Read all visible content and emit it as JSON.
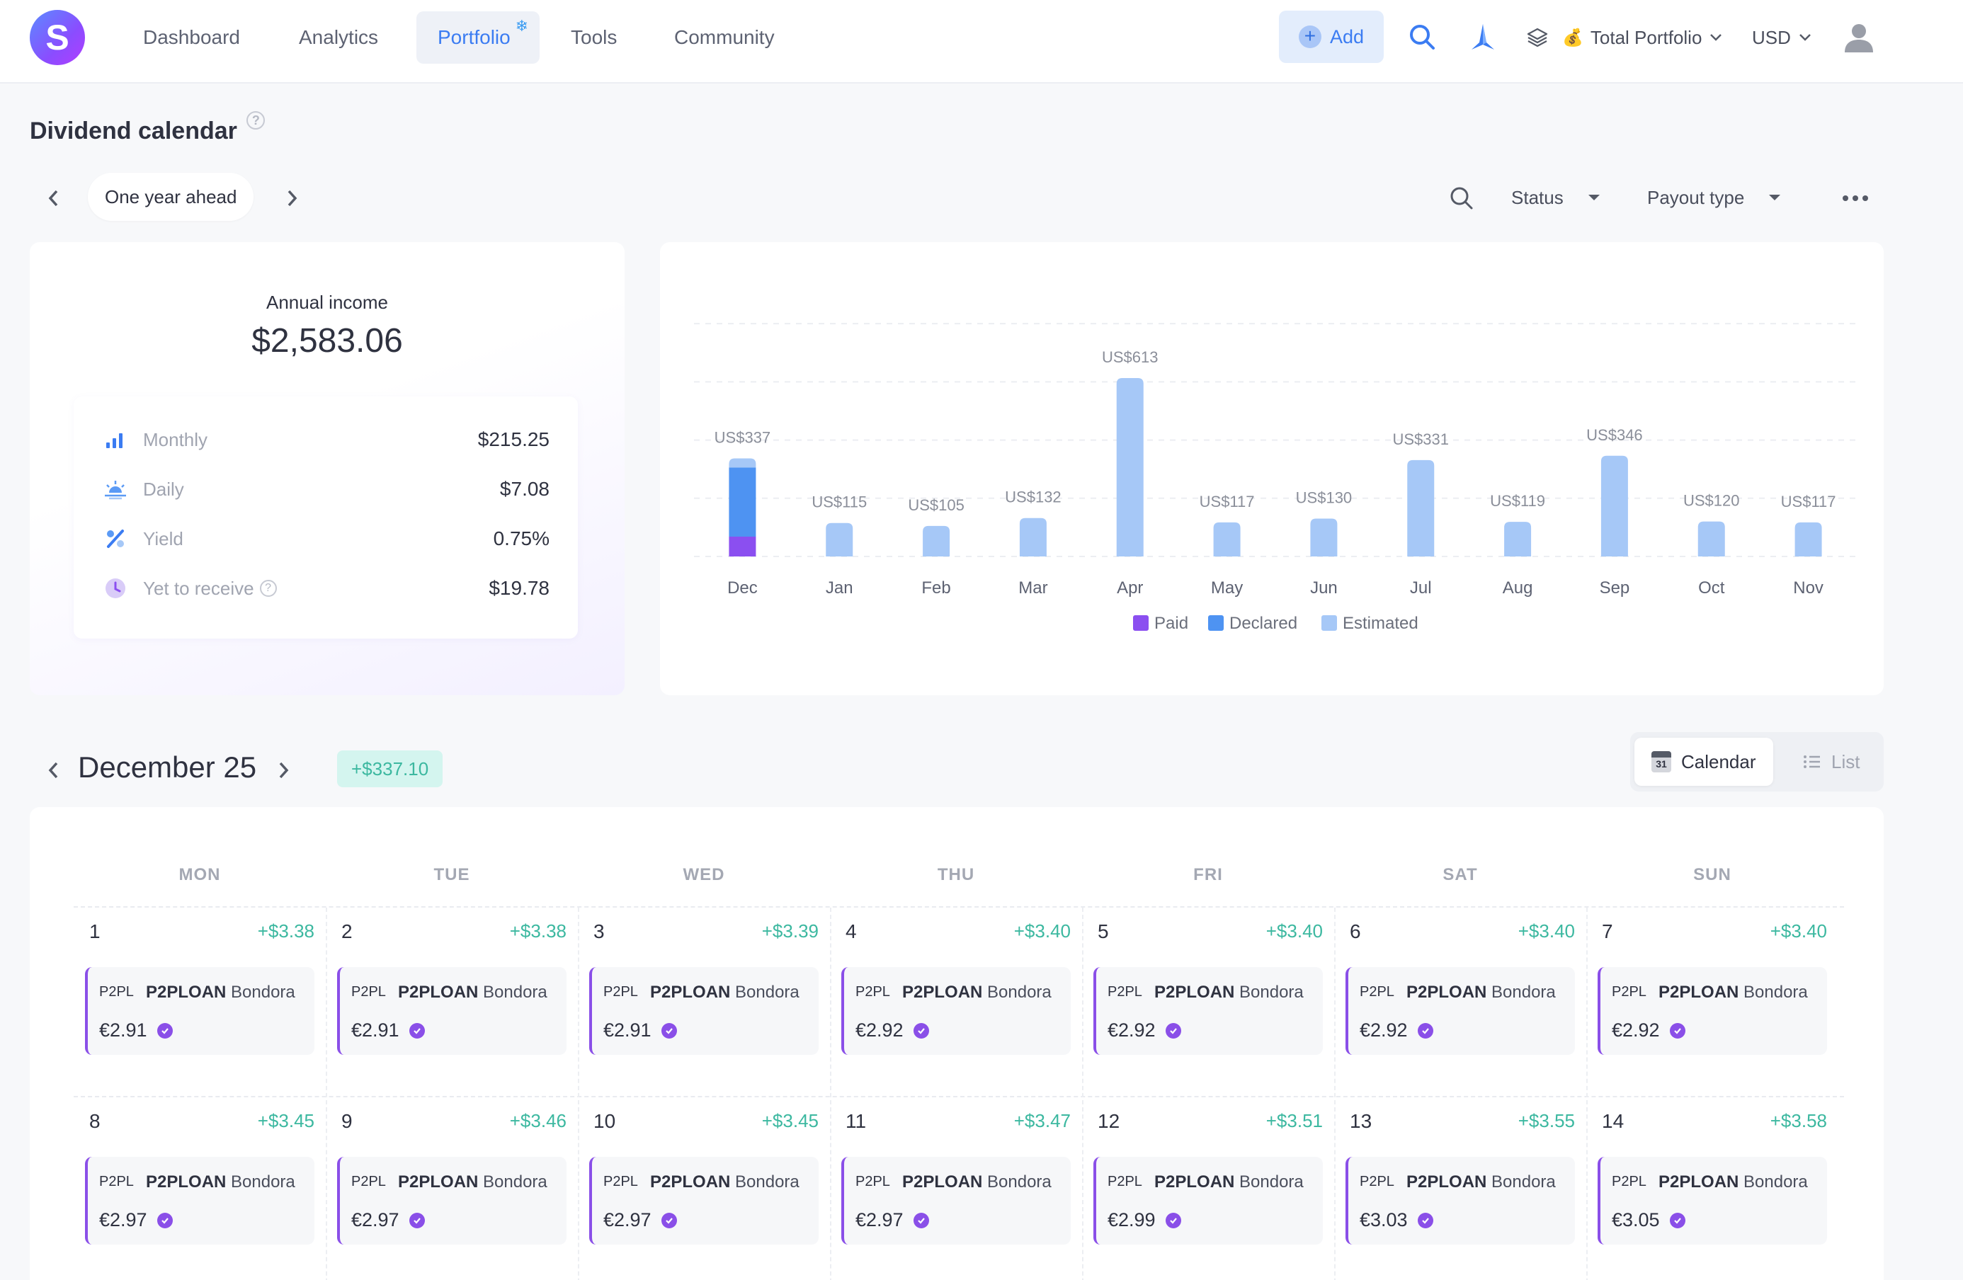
{
  "app": {
    "logo_letter": "S"
  },
  "nav": {
    "items": [
      {
        "label": "Dashboard",
        "active": false
      },
      {
        "label": "Analytics",
        "active": false
      },
      {
        "label": "Portfolio",
        "active": true
      },
      {
        "label": "Tools",
        "active": false
      },
      {
        "label": "Community",
        "active": false
      }
    ],
    "add_label": "Add",
    "portfolio_select": "Total Portfolio",
    "currency_select": "USD"
  },
  "page": {
    "title": "Dividend calendar",
    "period": "One year ahead",
    "filters": {
      "status": "Status",
      "payout_type": "Payout type"
    }
  },
  "summary": {
    "annual_label": "Annual income",
    "annual_value": "$2,583.06",
    "stats": [
      {
        "label": "Monthly",
        "value": "$215.25",
        "icon": "bar-chart-icon"
      },
      {
        "label": "Daily",
        "value": "$7.08",
        "icon": "sunrise-icon"
      },
      {
        "label": "Yield",
        "value": "0.75%",
        "icon": "percent-icon"
      },
      {
        "label": "Yet to receive",
        "value": "$19.78",
        "icon": "clock-icon"
      }
    ]
  },
  "chart_data": {
    "type": "bar",
    "categories": [
      "Dec",
      "Jan",
      "Feb",
      "Mar",
      "Apr",
      "May",
      "Jun",
      "Jul",
      "Aug",
      "Sep",
      "Oct",
      "Nov"
    ],
    "value_labels": [
      "US$337",
      "US$115",
      "US$105",
      "US$132",
      "US$613",
      "US$117",
      "US$130",
      "US$331",
      "US$119",
      "US$346",
      "US$120",
      "US$117"
    ],
    "series": [
      {
        "name": "Paid",
        "color": "#8b4ff0",
        "values": [
          68,
          0,
          0,
          0,
          0,
          0,
          0,
          0,
          0,
          0,
          0,
          0
        ]
      },
      {
        "name": "Declared",
        "color": "#4e93f2",
        "values": [
          238,
          0,
          0,
          0,
          0,
          0,
          0,
          0,
          0,
          0,
          0,
          0
        ]
      },
      {
        "name": "Estimated",
        "color": "#a6c8f7",
        "values": [
          31,
          115,
          105,
          132,
          613,
          117,
          130,
          331,
          119,
          346,
          120,
          117
        ]
      }
    ],
    "ylim": [
      0,
      800
    ],
    "grid": true,
    "legend": "bottom"
  },
  "calendar": {
    "month_title": "December 25",
    "month_total": "+$337.10",
    "view_calendar": "Calendar",
    "view_list": "List",
    "calendar_icon_day": "31",
    "weekdays": [
      "MON",
      "TUE",
      "WED",
      "THU",
      "FRI",
      "SAT",
      "SUN"
    ],
    "days": [
      {
        "day": "1",
        "total": "+$3.38",
        "ticker": "P2PL",
        "name_bold": "P2PLOAN",
        "name_rest": "Bondora",
        "amount": "€2.91"
      },
      {
        "day": "2",
        "total": "+$3.38",
        "ticker": "P2PL",
        "name_bold": "P2PLOAN",
        "name_rest": "Bondora",
        "amount": "€2.91"
      },
      {
        "day": "3",
        "total": "+$3.39",
        "ticker": "P2PL",
        "name_bold": "P2PLOAN",
        "name_rest": "Bondora",
        "amount": "€2.91"
      },
      {
        "day": "4",
        "total": "+$3.40",
        "ticker": "P2PL",
        "name_bold": "P2PLOAN",
        "name_rest": "Bondora",
        "amount": "€2.92"
      },
      {
        "day": "5",
        "total": "+$3.40",
        "ticker": "P2PL",
        "name_bold": "P2PLOAN",
        "name_rest": "Bondora",
        "amount": "€2.92"
      },
      {
        "day": "6",
        "total": "+$3.40",
        "ticker": "P2PL",
        "name_bold": "P2PLOAN",
        "name_rest": "Bondora",
        "amount": "€2.92"
      },
      {
        "day": "7",
        "total": "+$3.40",
        "ticker": "P2PL",
        "name_bold": "P2PLOAN",
        "name_rest": "Bondora",
        "amount": "€2.92"
      },
      {
        "day": "8",
        "total": "+$3.45",
        "ticker": "P2PL",
        "name_bold": "P2PLOAN",
        "name_rest": "Bondora",
        "amount": "€2.97"
      },
      {
        "day": "9",
        "total": "+$3.46",
        "ticker": "P2PL",
        "name_bold": "P2PLOAN",
        "name_rest": "Bondora",
        "amount": "€2.97"
      },
      {
        "day": "10",
        "total": "+$3.45",
        "ticker": "P2PL",
        "name_bold": "P2PLOAN",
        "name_rest": "Bondora",
        "amount": "€2.97"
      },
      {
        "day": "11",
        "total": "+$3.47",
        "ticker": "P2PL",
        "name_bold": "P2PLOAN",
        "name_rest": "Bondora",
        "amount": "€2.97"
      },
      {
        "day": "12",
        "total": "+$3.51",
        "ticker": "P2PL",
        "name_bold": "P2PLOAN",
        "name_rest": "Bondora",
        "amount": "€2.99"
      },
      {
        "day": "13",
        "total": "+$3.55",
        "ticker": "P2PL",
        "name_bold": "P2PLOAN",
        "name_rest": "Bondora",
        "amount": "€3.03"
      },
      {
        "day": "14",
        "total": "+$3.58",
        "ticker": "P2PL",
        "name_bold": "P2PLOAN",
        "name_rest": "Bondora",
        "amount": "€3.05"
      }
    ]
  },
  "colors": {
    "accent": "#3b7cf2",
    "positive": "#3cb8a0",
    "paid": "#8b4ff0",
    "declared": "#4e93f2",
    "estimated": "#a6c8f7"
  }
}
